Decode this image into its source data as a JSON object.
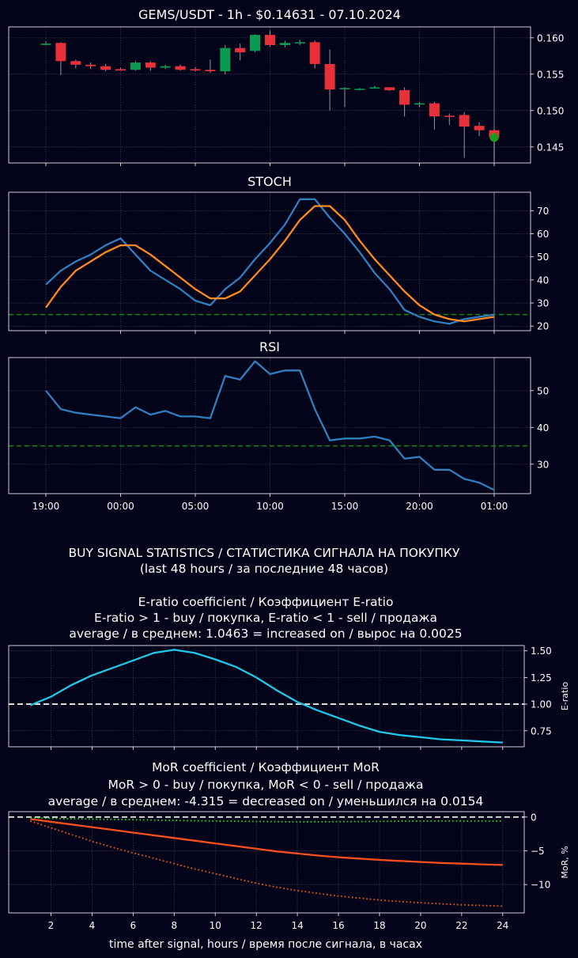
{
  "chart_data": [
    {
      "id": "price",
      "type": "candlestick",
      "title": "GEMS/USDT - 1h - $0.14631 - 07.10.2024",
      "ylim": [
        0.1428,
        0.1615
      ],
      "yticks": [
        "0.160",
        "0.155",
        "0.150",
        "0.145"
      ],
      "ytick_values": [
        0.16,
        0.155,
        0.15,
        0.145
      ],
      "candles": [
        {
          "o": 0.1592,
          "h": 0.1595,
          "l": 0.159,
          "c": 0.1592
        },
        {
          "o": 0.1593,
          "h": 0.1594,
          "l": 0.1549,
          "c": 0.1568
        },
        {
          "o": 0.1568,
          "h": 0.157,
          "l": 0.1558,
          "c": 0.1563
        },
        {
          "o": 0.1563,
          "h": 0.1566,
          "l": 0.1557,
          "c": 0.1561
        },
        {
          "o": 0.1561,
          "h": 0.1564,
          "l": 0.1554,
          "c": 0.1556
        },
        {
          "o": 0.1557,
          "h": 0.1559,
          "l": 0.1555,
          "c": 0.1555
        },
        {
          "o": 0.1556,
          "h": 0.1568,
          "l": 0.1555,
          "c": 0.1566
        },
        {
          "o": 0.1566,
          "h": 0.1568,
          "l": 0.1555,
          "c": 0.1559
        },
        {
          "o": 0.1559,
          "h": 0.1563,
          "l": 0.1557,
          "c": 0.1561
        },
        {
          "o": 0.1561,
          "h": 0.1563,
          "l": 0.1555,
          "c": 0.1556
        },
        {
          "o": 0.1557,
          "h": 0.156,
          "l": 0.1554,
          "c": 0.1555
        },
        {
          "o": 0.1556,
          "h": 0.157,
          "l": 0.1552,
          "c": 0.1554
        },
        {
          "o": 0.1554,
          "h": 0.159,
          "l": 0.155,
          "c": 0.1586
        },
        {
          "o": 0.1586,
          "h": 0.1592,
          "l": 0.1569,
          "c": 0.158
        },
        {
          "o": 0.1582,
          "h": 0.1605,
          "l": 0.158,
          "c": 0.1604
        },
        {
          "o": 0.1604,
          "h": 0.161,
          "l": 0.1588,
          "c": 0.159
        },
        {
          "o": 0.159,
          "h": 0.1596,
          "l": 0.1587,
          "c": 0.1593
        },
        {
          "o": 0.1593,
          "h": 0.1597,
          "l": 0.159,
          "c": 0.1594
        },
        {
          "o": 0.1594,
          "h": 0.1596,
          "l": 0.1558,
          "c": 0.1564
        },
        {
          "o": 0.1564,
          "h": 0.1584,
          "l": 0.15,
          "c": 0.1529
        },
        {
          "o": 0.153,
          "h": 0.1532,
          "l": 0.1505,
          "c": 0.1531
        },
        {
          "o": 0.153,
          "h": 0.1531,
          "l": 0.1528,
          "c": 0.153
        },
        {
          "o": 0.1531,
          "h": 0.1534,
          "l": 0.153,
          "c": 0.1532
        },
        {
          "o": 0.1532,
          "h": 0.1532,
          "l": 0.1527,
          "c": 0.1528
        },
        {
          "o": 0.1528,
          "h": 0.1532,
          "l": 0.1492,
          "c": 0.1508
        },
        {
          "o": 0.1509,
          "h": 0.1512,
          "l": 0.1505,
          "c": 0.151
        },
        {
          "o": 0.151,
          "h": 0.1512,
          "l": 0.1474,
          "c": 0.1492
        },
        {
          "o": 0.1493,
          "h": 0.1496,
          "l": 0.148,
          "c": 0.1492
        },
        {
          "o": 0.1494,
          "h": 0.1498,
          "l": 0.1435,
          "c": 0.1478
        },
        {
          "o": 0.1479,
          "h": 0.1484,
          "l": 0.1465,
          "c": 0.1473
        },
        {
          "o": 0.1473,
          "h": 0.1474,
          "l": 0.143,
          "c": 0.1463
        }
      ],
      "signal_point": {
        "index": 30,
        "value": 0.1463
      }
    },
    {
      "id": "stoch",
      "type": "line",
      "title": "STOCH",
      "ylim": [
        18,
        78
      ],
      "yticks": [
        "70",
        "60",
        "50",
        "40",
        "30",
        "20"
      ],
      "ytick_values": [
        70,
        60,
        50,
        40,
        30,
        20
      ],
      "hline": 25,
      "series": [
        {
          "color": "#2f7fc1",
          "values": [
            38,
            44,
            48,
            51,
            55,
            58,
            51,
            44,
            40,
            36,
            31,
            29,
            36,
            41,
            49,
            56,
            64,
            75,
            75,
            67,
            60,
            52,
            43,
            36,
            27,
            24,
            22,
            21,
            23,
            24,
            25
          ]
        },
        {
          "color": "#ff8a1e",
          "values": [
            28,
            37,
            44,
            48,
            52,
            55,
            55,
            51,
            46,
            41,
            36,
            32,
            32,
            35,
            42,
            49,
            57,
            66,
            72,
            72,
            66,
            57,
            49,
            42,
            35,
            29,
            25,
            23,
            22,
            23,
            24
          ]
        }
      ]
    },
    {
      "id": "rsi",
      "type": "line",
      "title": "RSI",
      "ylim": [
        22,
        59
      ],
      "yticks": [
        "50",
        "40",
        "30"
      ],
      "ytick_values": [
        50,
        40,
        30
      ],
      "hline": 35,
      "xtick_labels": [
        "19:00",
        "00:00",
        "05:00",
        "10:00",
        "15:00",
        "20:00",
        "01:00"
      ],
      "xtick_index": [
        0,
        5,
        10,
        15,
        20,
        25,
        30
      ],
      "series": [
        {
          "color": "#2f7fc1",
          "values": [
            50,
            45,
            44,
            43.5,
            43,
            42.5,
            45.5,
            43.5,
            44.5,
            43,
            43,
            42.5,
            54,
            53,
            58,
            54.5,
            55.5,
            55.5,
            45,
            36.5,
            37,
            37,
            37.5,
            36.5,
            31.5,
            32,
            28.5,
            28.5,
            26,
            25,
            23
          ]
        }
      ]
    },
    {
      "id": "eratio",
      "type": "line",
      "title_lines": [
        "E-ratio coefficient / Коэффициент E-ratio",
        "E-ratio > 1 - buy / покупка, E-ratio < 1 - sell / продажа",
        "average / в среднем: 1.0463 = increased on / вырос на 0.0025"
      ],
      "ylabel": "E-ratio",
      "ylim": [
        0.6,
        1.55
      ],
      "yticks": [
        "1.50",
        "1.25",
        "1.00",
        "0.75"
      ],
      "ytick_values": [
        1.5,
        1.25,
        1.0,
        0.75
      ],
      "hline": 1.0,
      "x": [
        1,
        2,
        3,
        4,
        5,
        6,
        7,
        8,
        9,
        10,
        11,
        12,
        13,
        14,
        15,
        16,
        17,
        18,
        19,
        20,
        21,
        22,
        23,
        24
      ],
      "series": [
        {
          "color": "#22c8e8",
          "values": [
            0.99,
            1.07,
            1.18,
            1.27,
            1.34,
            1.41,
            1.48,
            1.51,
            1.48,
            1.42,
            1.35,
            1.25,
            1.13,
            1.02,
            0.94,
            0.87,
            0.8,
            0.74,
            0.71,
            0.69,
            0.67,
            0.66,
            0.65,
            0.64
          ]
        }
      ]
    },
    {
      "id": "mor",
      "type": "line",
      "title_lines": [
        "MoR coefficient / Коэффициент MoR",
        "MoR > 0 - buy / покупка, MoR < 0 - sell / продажа",
        "average / в среднем: -4.315 = decreased on / уменьшился на 0.0154"
      ],
      "ylabel": "MoR, %",
      "xlabel": "time after signal, hours / время после сигнала, в часах",
      "ylim": [
        -14.2,
        0.8
      ],
      "yticks": [
        "0",
        "−5",
        "−10"
      ],
      "ytick_values": [
        0,
        -5,
        -10
      ],
      "xticks": [
        "2",
        "4",
        "6",
        "8",
        "10",
        "12",
        "14",
        "16",
        "18",
        "20",
        "22",
        "24"
      ],
      "xtick_values": [
        2,
        4,
        6,
        8,
        10,
        12,
        14,
        16,
        18,
        20,
        22,
        24
      ],
      "hline": 0,
      "x": [
        1,
        2,
        3,
        4,
        5,
        6,
        7,
        8,
        9,
        10,
        11,
        12,
        13,
        14,
        15,
        16,
        17,
        18,
        19,
        20,
        21,
        22,
        23,
        24
      ],
      "series": [
        {
          "color": "#ff4f1f",
          "style": "solid",
          "values": [
            -0.3,
            -0.7,
            -1.1,
            -1.5,
            -1.9,
            -2.3,
            -2.7,
            -3.1,
            -3.5,
            -3.9,
            -4.3,
            -4.7,
            -5.1,
            -5.4,
            -5.7,
            -5.95,
            -6.15,
            -6.35,
            -6.5,
            -6.65,
            -6.8,
            -6.9,
            -7.0,
            -7.1
          ]
        },
        {
          "color": "#ff5a1f",
          "style": "dotted",
          "values": [
            -0.6,
            -1.6,
            -2.6,
            -3.6,
            -4.5,
            -5.3,
            -6.1,
            -6.9,
            -7.7,
            -8.4,
            -9.1,
            -9.8,
            -10.4,
            -10.9,
            -11.3,
            -11.7,
            -12.0,
            -12.3,
            -12.5,
            -12.7,
            -12.85,
            -13.0,
            -13.1,
            -13.2
          ]
        },
        {
          "color": "#22dd22",
          "style": "dotted",
          "values": [
            -0.1,
            -0.2,
            -0.25,
            -0.3,
            -0.35,
            -0.4,
            -0.45,
            -0.5,
            -0.55,
            -0.6,
            -0.62,
            -0.65,
            -0.68,
            -0.7,
            -0.7,
            -0.68,
            -0.66,
            -0.64,
            -0.62,
            -0.6,
            -0.6,
            -0.6,
            -0.6,
            -0.6
          ]
        }
      ]
    }
  ],
  "stats_header": [
    "BUY SIGNAL STATISTICS / СТАТИСТИКА СИГНАЛА НА ПОКУПКУ",
    "(last 48 hours / за последние 48 часов)"
  ],
  "colors": {
    "background": "#03031a",
    "up": "#0c9a52",
    "down": "#e8303a",
    "hline_green": "#0a8f0a",
    "hline_white": "#ffffff",
    "signal_dot": "#1e9a1e"
  }
}
